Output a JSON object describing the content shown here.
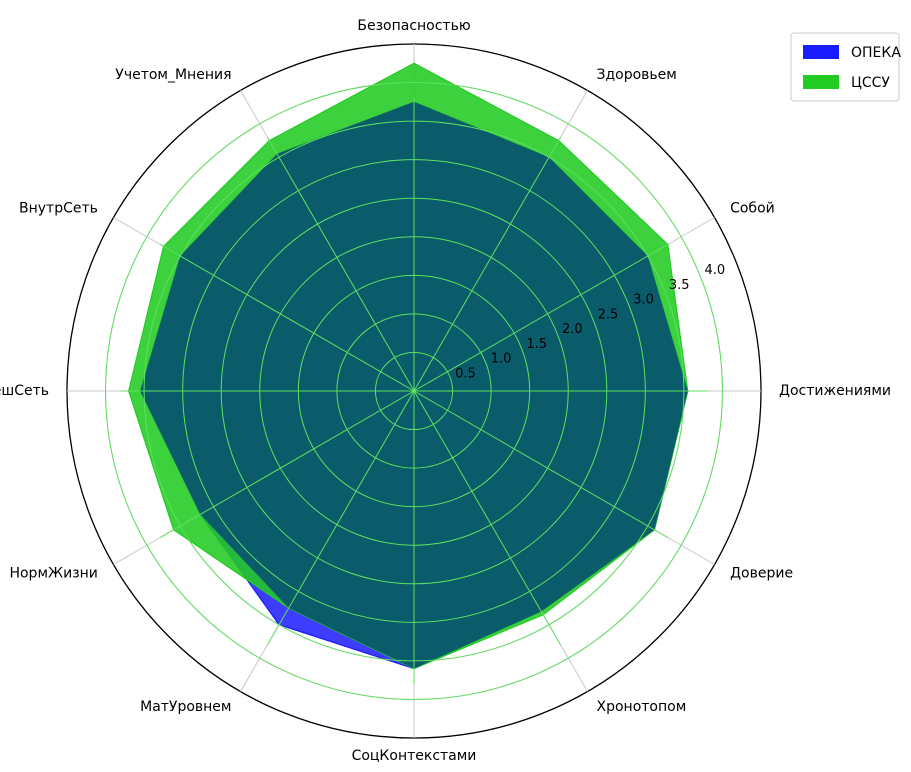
{
  "chart_data": {
    "type": "radar",
    "title": "",
    "axes": [
      "Безопасностью",
      "Здоровьем",
      "Собой",
      "Достижениями",
      "Доверие",
      "Хронотопом",
      "СоцКонтекстами",
      "МатУровнем",
      "НормЖизни",
      "ВнешСеть",
      "ВнутрСеть",
      "Учетом_Мнения"
    ],
    "rlim": [
      0,
      4.5
    ],
    "rticks": [
      0.5,
      1.0,
      1.5,
      2.0,
      2.5,
      3.0,
      3.5,
      4.0
    ],
    "rtick_labels": [
      "0.5",
      "1.0",
      "1.5",
      "2.0",
      "2.5",
      "3.0",
      "3.5",
      "4.0"
    ],
    "series": [
      {
        "name": "ОПЕКА",
        "values": [
          3.75,
          3.5,
          3.5,
          3.55,
          3.6,
          3.3,
          3.6,
          3.5,
          3.2,
          3.55,
          3.5,
          3.55
        ]
      },
      {
        "name": "ЦССУ",
        "values": [
          4.25,
          3.75,
          3.8,
          3.55,
          3.6,
          3.35,
          3.6,
          3.25,
          3.6,
          3.7,
          3.75,
          3.75
        ]
      }
    ],
    "colors": {
      "ОПЕКА": "#1b1bff",
      "ЦССУ": "#22cc22",
      "overlap": "#0a5c6b",
      "grid": "#5fe05f"
    },
    "grid": true,
    "legend_position": "top-right"
  }
}
